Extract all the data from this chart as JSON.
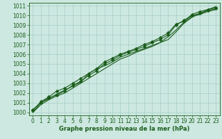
{
  "xlabel": "Graphe pression niveau de la mer (hPa)",
  "bg_color": "#cce8e0",
  "grid_color": "#a8cec8",
  "line_color": "#1a5c1a",
  "marker_color": "#1a5c1a",
  "xlim": [
    -0.5,
    23.5
  ],
  "ylim": [
    999.7,
    1011.3
  ],
  "xticks": [
    0,
    1,
    2,
    3,
    4,
    5,
    6,
    7,
    8,
    9,
    10,
    11,
    12,
    13,
    14,
    15,
    16,
    17,
    18,
    19,
    20,
    21,
    22,
    23
  ],
  "yticks": [
    1000,
    1001,
    1002,
    1003,
    1004,
    1005,
    1006,
    1007,
    1008,
    1009,
    1010,
    1011
  ],
  "series": [
    [
      1000.3,
      1001.0,
      1001.5,
      1001.8,
      1002.2,
      1002.8,
      1003.2,
      1003.8,
      1004.3,
      1005.0,
      1005.4,
      1005.9,
      1006.2,
      1006.5,
      1006.8,
      1007.2,
      1007.5,
      1008.0,
      1009.0,
      1009.5,
      1010.0,
      1010.2,
      1010.5,
      1010.7
    ],
    [
      1000.0,
      1001.0,
      1001.4,
      1001.9,
      1002.3,
      1002.7,
      1003.1,
      1004.0,
      1004.5,
      1004.8,
      1005.2,
      1005.7,
      1006.0,
      1006.3,
      1006.6,
      1006.9,
      1007.2,
      1007.5,
      1008.3,
      1009.2,
      1009.8,
      1010.2,
      1010.6,
      1010.9
    ],
    [
      1000.2,
      1001.1,
      1001.6,
      1002.2,
      1002.5,
      1003.0,
      1003.5,
      1004.0,
      1004.5,
      1005.2,
      1005.6,
      1006.0,
      1006.3,
      1006.6,
      1007.0,
      1007.3,
      1007.7,
      1008.2,
      1009.1,
      1009.4,
      1010.1,
      1010.4,
      1010.6,
      1010.8
    ],
    [
      1000.0,
      1000.8,
      1001.3,
      1001.7,
      1002.0,
      1002.5,
      1003.0,
      1003.5,
      1004.0,
      1004.5,
      1005.0,
      1005.5,
      1005.8,
      1006.2,
      1006.5,
      1006.8,
      1007.2,
      1007.8,
      1008.5,
      1009.3,
      1009.9,
      1010.1,
      1010.4,
      1010.6
    ]
  ],
  "marker_series": [
    0,
    2
  ],
  "marker_size": 2.5,
  "line_width": 0.8,
  "tick_fontsize": 5.5,
  "xlabel_fontsize": 6.0
}
